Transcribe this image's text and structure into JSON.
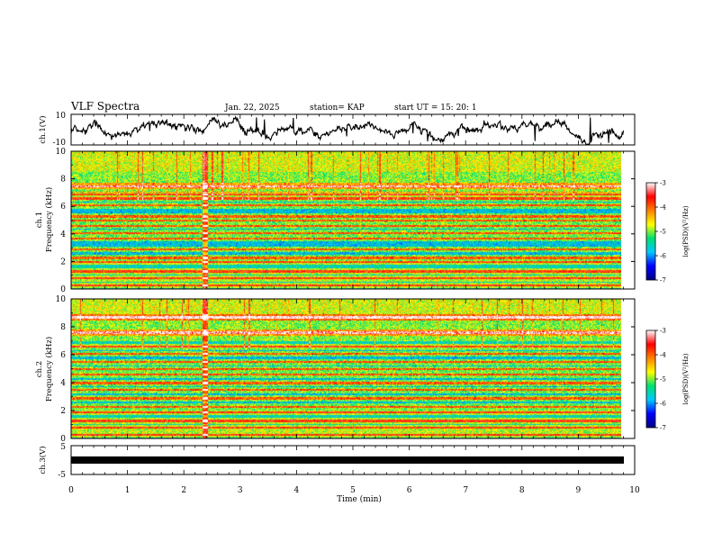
{
  "header": {
    "title": "VLF Spectra",
    "date": "Jan. 22, 2025",
    "station": "station= KAP",
    "start": "start  UT =   15: 20: 1"
  },
  "chart_data": [
    {
      "type": "line",
      "panel": "ch1-waveform",
      "ylabel": "ch.1(V)",
      "ylim": [
        -10,
        10
      ],
      "y_ticks": [
        "10",
        "-10"
      ],
      "xlim": [
        0,
        10
      ],
      "trace_color": "#000000",
      "note": "broadband waveform fluctuating between about -8 and 8 V over 0-9.8 min"
    },
    {
      "type": "heatmap",
      "panel": "ch1-spectrogram",
      "ylabel_top": "ch.1",
      "ylabel": "Frequency (kHz)",
      "ylim": [
        0,
        10
      ],
      "y_ticks": [
        "0",
        "2",
        "4",
        "6",
        "8",
        "10"
      ],
      "xlim": [
        0,
        10
      ],
      "data_end_min": 9.8,
      "bands_khz": [
        0.3,
        0.8,
        1.3,
        2.0,
        2.3,
        2.9,
        3.7,
        4.1,
        4.6,
        5.0,
        5.3,
        6.1,
        6.6,
        6.9,
        7.5
      ],
      "broadband_events_min": [
        2.38
      ],
      "colorbar": {
        "label": "log(PSD)(V²/Hz)",
        "ticks": [
          "-3",
          "-4",
          "-5",
          "-6",
          "-7"
        ],
        "range": [
          -7,
          -3
        ],
        "colors": [
          "#000080",
          "#0000ff",
          "#00c8ff",
          "#00e070",
          "#ffff00",
          "#ff8000",
          "#ff0000",
          "#ffffff"
        ]
      }
    },
    {
      "type": "heatmap",
      "panel": "ch2-spectrogram",
      "ylabel_top": "ch.2",
      "ylabel": "Frequency (kHz)",
      "ylim": [
        0,
        10
      ],
      "y_ticks": [
        "0",
        "2",
        "4",
        "6",
        "8",
        "10"
      ],
      "xlim": [
        0,
        10
      ],
      "data_end_min": 9.8,
      "bands_khz": [
        0.3,
        0.8,
        1.3,
        1.9,
        2.3,
        2.9,
        3.5,
        4.0,
        4.6,
        5.0,
        5.5,
        6.1,
        6.6,
        7.6,
        8.7
      ],
      "broadband_events_min": [
        2.38
      ],
      "colorbar": {
        "label": "log(PSD)(V²/Hz)",
        "ticks": [
          "-3",
          "-4",
          "-5",
          "-6",
          "-7"
        ],
        "range": [
          -7,
          -3
        ],
        "colors": [
          "#000080",
          "#0000ff",
          "#00c8ff",
          "#00e070",
          "#ffff00",
          "#ff8000",
          "#ff0000",
          "#ffffff"
        ]
      }
    },
    {
      "type": "line",
      "panel": "ch3-waveform",
      "ylabel": "ch.3(V)",
      "ylim": [
        -5,
        5
      ],
      "y_ticks": [
        "5",
        "-5"
      ],
      "xlim": [
        0,
        10
      ],
      "note": "saturated thick black band centred near 0 V from 0 to 9.8 min",
      "trace_color": "#000000"
    }
  ],
  "xaxis": {
    "label": "Time (min)",
    "ticks": [
      "0",
      "1",
      "2",
      "3",
      "4",
      "5",
      "6",
      "7",
      "8",
      "9",
      "10"
    ]
  }
}
